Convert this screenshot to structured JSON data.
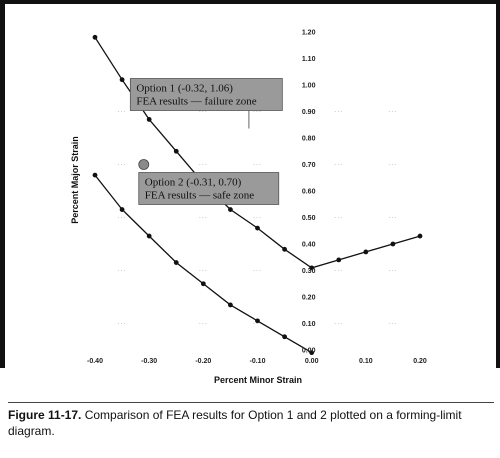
{
  "chart_data": {
    "type": "line",
    "xlabel": "Percent Minor Strain",
    "ylabel": "Percent Major Strain",
    "xlim": [
      -0.4,
      0.2
    ],
    "ylim": [
      0.0,
      1.2
    ],
    "x_ticks": [
      "-0.40",
      "-0.30",
      "-0.20",
      "-0.10",
      "0.00",
      "0.10",
      "0.20"
    ],
    "y_ticks": [
      "0.00",
      "0.10",
      "0.20",
      "0.30",
      "0.40",
      "0.50",
      "0.60",
      "0.70",
      "0.80",
      "0.90",
      "1.00",
      "1.10",
      "1.20"
    ],
    "grid": false,
    "series": [
      {
        "color": "#111111",
        "points": [
          [
            -0.4,
            1.18
          ],
          [
            -0.35,
            1.02
          ],
          [
            -0.3,
            0.87
          ],
          [
            -0.25,
            0.75
          ],
          [
            -0.2,
            0.63
          ],
          [
            -0.15,
            0.53
          ],
          [
            -0.1,
            0.46
          ],
          [
            -0.05,
            0.38
          ],
          [
            0.0,
            0.31
          ],
          [
            0.05,
            0.34
          ],
          [
            0.1,
            0.37
          ],
          [
            0.15,
            0.4
          ],
          [
            0.2,
            0.43
          ]
        ]
      },
      {
        "color": "#111111",
        "points": [
          [
            -0.4,
            0.66
          ],
          [
            -0.35,
            0.53
          ],
          [
            -0.3,
            0.43
          ],
          [
            -0.25,
            0.33
          ],
          [
            -0.2,
            0.25
          ],
          [
            -0.15,
            0.17
          ],
          [
            -0.1,
            0.11
          ],
          [
            -0.05,
            0.05
          ],
          [
            0.0,
            -0.01
          ]
        ]
      }
    ],
    "annotations": [
      {
        "lines": [
          "Option 1 (-0.32, 1.06)",
          "FEA results — failure zone"
        ],
        "target": [
          -0.32,
          1.06
        ]
      },
      {
        "lines": [
          "Option 2 (-0.31, 0.70)",
          "FEA results — safe zone"
        ],
        "target": [
          -0.31,
          0.7
        ]
      }
    ]
  },
  "caption": {
    "label": "Figure 11-17.",
    "text": " Comparison of FEA results for Option 1 and 2 plotted on a forming-limit diagram."
  }
}
